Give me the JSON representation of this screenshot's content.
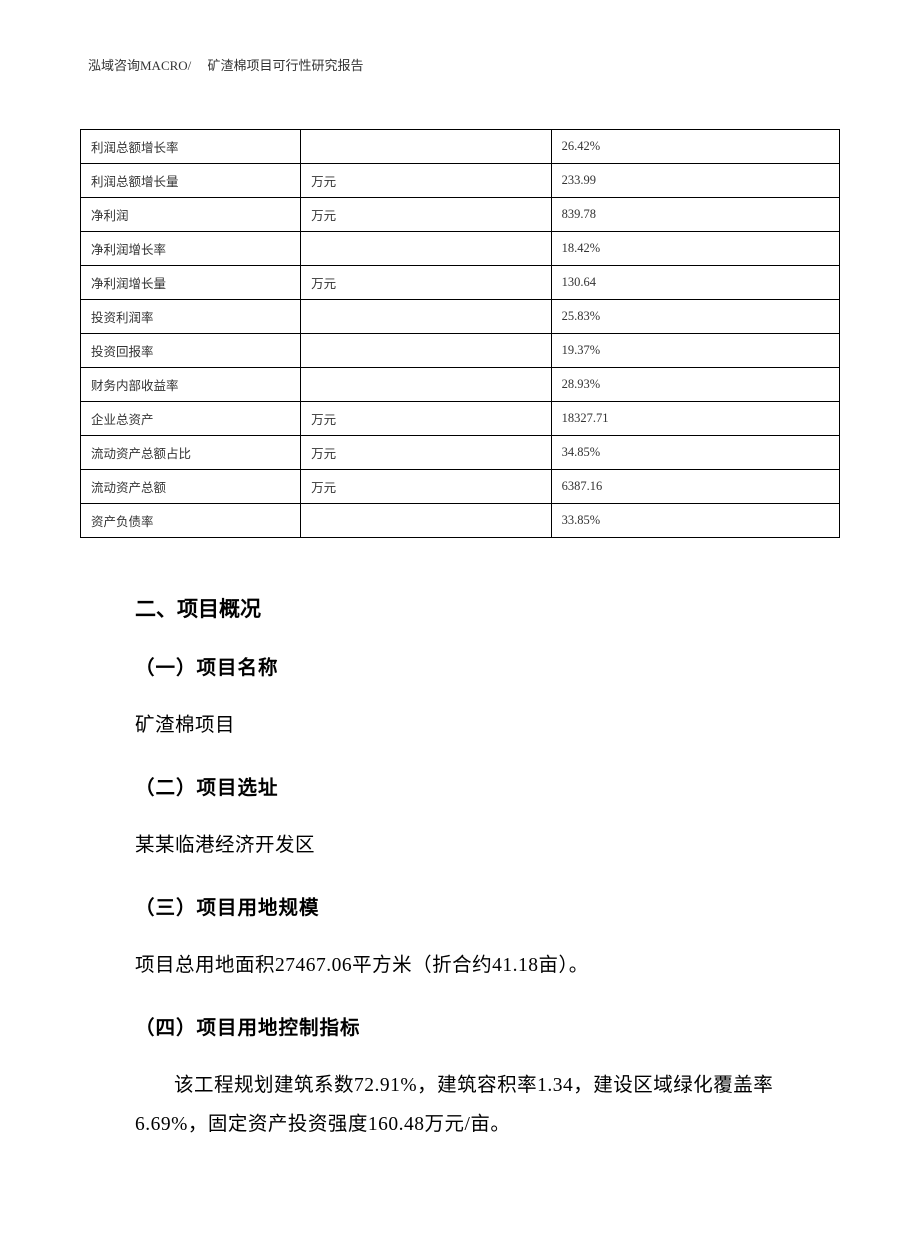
{
  "header": "泓域咨询MACRO/　 矿渣棉项目可行性研究报告",
  "table": {
    "rows": [
      {
        "label": "利润总额增长率",
        "unit": "",
        "value": "26.42%"
      },
      {
        "label": "利润总额增长量",
        "unit": "万元",
        "value": "233.99"
      },
      {
        "label": "净利润",
        "unit": "万元",
        "value": "839.78"
      },
      {
        "label": "净利润增长率",
        "unit": "",
        "value": "18.42%"
      },
      {
        "label": "净利润增长量",
        "unit": "万元",
        "value": "130.64"
      },
      {
        "label": "投资利润率",
        "unit": "",
        "value": "25.83%"
      },
      {
        "label": "投资回报率",
        "unit": "",
        "value": "19.37%"
      },
      {
        "label": "财务内部收益率",
        "unit": "",
        "value": "28.93%"
      },
      {
        "label": "企业总资产",
        "unit": "万元",
        "value": "18327.71"
      },
      {
        "label": "流动资产总额占比",
        "unit": "万元",
        "value": "34.85%"
      },
      {
        "label": "流动资产总额",
        "unit": "万元",
        "value": "6387.16"
      },
      {
        "label": "资产负债率",
        "unit": "",
        "value": "33.85%"
      }
    ]
  },
  "section": {
    "heading": "二、项目概况",
    "sub1": {
      "heading": "（一）项目名称",
      "text": "矿渣棉项目"
    },
    "sub2": {
      "heading": "（二）项目选址",
      "text": "某某临港经济开发区"
    },
    "sub3": {
      "heading": "（三）项目用地规模",
      "text": "项目总用地面积27467.06平方米（折合约41.18亩）。"
    },
    "sub4": {
      "heading": "（四）项目用地控制指标",
      "text": "该工程规划建筑系数72.91%，建筑容积率1.34，建设区域绿化覆盖率6.69%，固定资产投资强度160.48万元/亩。"
    }
  }
}
